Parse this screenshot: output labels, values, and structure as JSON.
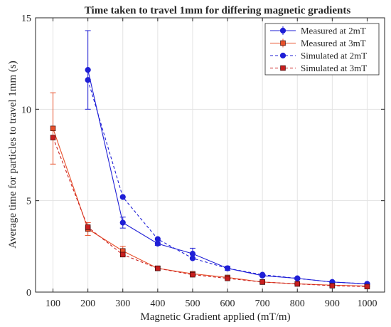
{
  "chart_data": {
    "type": "line",
    "title": "Time taken to travel 1mm for differing magnetic gradients",
    "xlabel": "Magnetic Gradient applied (mT/m)",
    "ylabel": "Average time for particles to travel 1mm (s)",
    "xlim": [
      50,
      1050
    ],
    "ylim": [
      0,
      15
    ],
    "xticks": [
      100,
      200,
      300,
      400,
      500,
      600,
      700,
      800,
      900,
      1000
    ],
    "yticks": [
      0,
      5,
      10,
      15
    ],
    "grid": true,
    "legend_position": "top-right",
    "series": [
      {
        "name": "Measured at 2mT",
        "color": "#1f1fd6",
        "line": "solid",
        "marker": "circle",
        "x": [
          200,
          300,
          400,
          500,
          600,
          700,
          800,
          900,
          1000
        ],
        "y": [
          12.15,
          3.8,
          2.65,
          2.1,
          1.3,
          0.9,
          0.75,
          0.55,
          0.45
        ],
        "err": [
          2.15,
          0.3,
          0.1,
          0.3,
          0.12,
          0.06,
          0.05,
          0.04,
          0.03
        ]
      },
      {
        "name": "Measured at 3mT",
        "color": "#e8502a",
        "line": "solid",
        "marker": "square",
        "x": [
          100,
          200,
          300,
          400,
          500,
          600,
          700,
          800,
          900,
          1000
        ],
        "y": [
          8.95,
          3.45,
          2.25,
          1.3,
          1.0,
          0.8,
          0.55,
          0.45,
          0.38,
          0.33
        ],
        "err": [
          1.95,
          0.35,
          0.25,
          0.1,
          0.08,
          0.06,
          0.04,
          0.04,
          0.03,
          0.03
        ]
      },
      {
        "name": "Simulated at 2mT",
        "color": "#1f1fd6",
        "line": "dashed",
        "marker": "circle",
        "x": [
          200,
          300,
          400,
          500,
          600,
          700,
          800,
          900,
          1000
        ],
        "y": [
          11.6,
          5.2,
          2.9,
          1.85,
          1.3,
          0.95,
          0.75,
          0.55,
          0.45
        ]
      },
      {
        "name": "Simulated at 3mT",
        "color": "#c81e1e",
        "line": "dashed",
        "marker": "square",
        "x": [
          100,
          200,
          300,
          400,
          500,
          600,
          700,
          800,
          900,
          1000
        ],
        "y": [
          8.45,
          3.55,
          2.05,
          1.3,
          0.95,
          0.75,
          0.55,
          0.45,
          0.35,
          0.3
        ]
      }
    ]
  }
}
